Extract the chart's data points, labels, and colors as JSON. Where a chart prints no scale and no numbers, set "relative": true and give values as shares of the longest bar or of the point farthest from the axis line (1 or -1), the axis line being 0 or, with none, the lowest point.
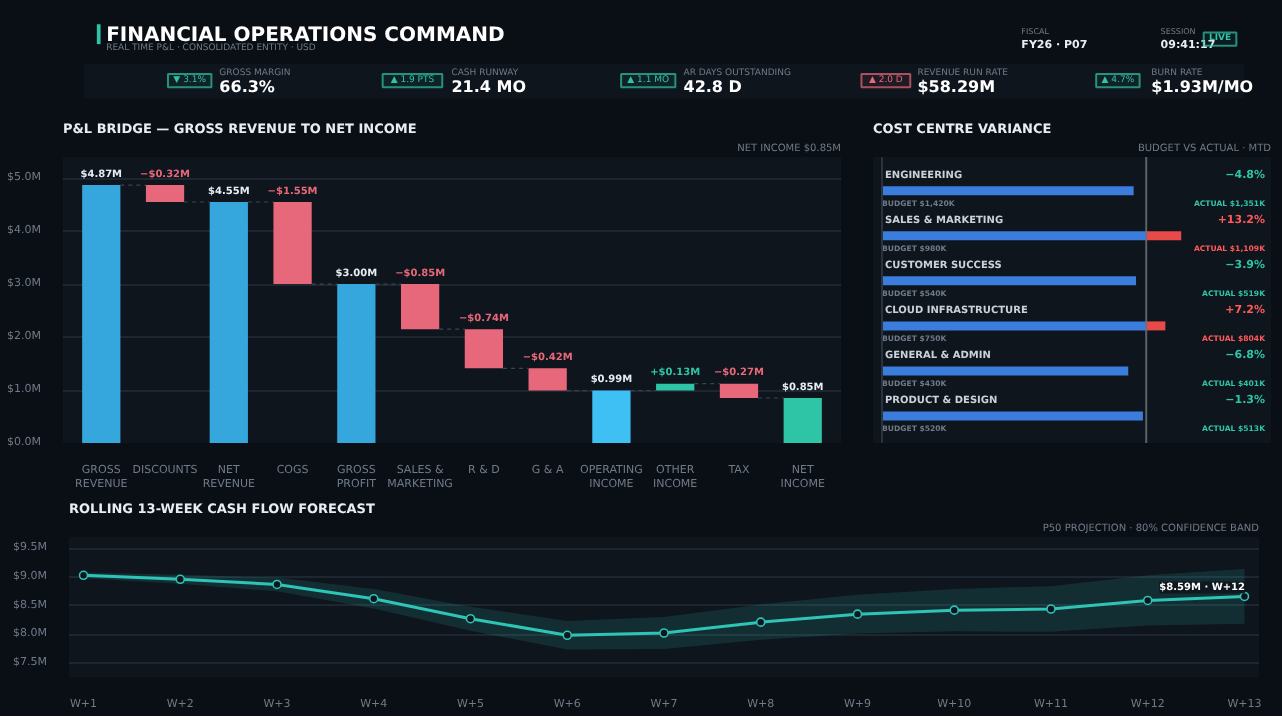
{
  "chart_data": [
    {
      "type": "other",
      "title": "FINANCIAL OPERATIONS COMMAND",
      "subtitle": "REAL TIME P&L · CONSOLIDATED ENTITY · USD",
      "annotations": [
        "FISCAL",
        "FY26 · P07",
        "SESSION",
        "09:41:17",
        "LIVE",
        "▼ 3.1%",
        "GROSS MARGIN",
        "66.3%",
        "▲ 1.9 PTS",
        "CASH RUNWAY",
        "21.4 MO",
        "▲ 1.1 MO",
        "AR DAYS OUTSTANDING",
        "42.8 D",
        "▲ 2.0 D",
        "REVENUE RUN RATE",
        "$58.29M",
        "▲ 4.7%",
        "BURN RATE",
        "$1.93M/MO"
      ]
    },
    {
      "type": "bar",
      "title": "P&L BRIDGE — GROSS REVENUE TO NET INCOME",
      "subtitle": "NET INCOME $0.85M",
      "categories": [
        "GROSS REVENUE",
        "DISCOUNTS",
        "NET REVENUE",
        "COGS",
        "GROSS PROFIT",
        "SALES & MARKETING",
        "R & D",
        "G & A",
        "OPERATING INCOME",
        "OTHER INCOME",
        "TAX",
        "NET INCOME"
      ],
      "values": [
        4.87,
        -0.32,
        4.55,
        -1.55,
        3.0,
        -0.85,
        -0.74,
        -0.42,
        0.99,
        0.13,
        -0.27,
        0.85
      ],
      "base": [
        0,
        4.87,
        0,
        4.55,
        0,
        3.0,
        2.15,
        1.41,
        0,
        0.99,
        1.12,
        0
      ],
      "colors": [
        "#35a7dc",
        "#e8687b",
        "#35a7dc",
        "#e8687b",
        "#35a7dc",
        "#e8687b",
        "#e8687b",
        "#e8687b",
        "#3fc0f5",
        "#2ec4a6",
        "#e8687b",
        "#2ec4a6"
      ],
      "value_labels": [
        "$4.87M",
        "−$0.32M",
        "$4.55M",
        "−$1.55M",
        "$3.00M",
        "−$0.85M",
        "−$0.74M",
        "−$0.42M",
        "$0.99M",
        "+$0.13M",
        "−$0.27M",
        "$0.85M"
      ],
      "ylim": [
        0,
        5.4
      ],
      "yticks": [
        {
          "value": 0,
          "label": "$0.0M"
        },
        {
          "value": 1,
          "label": "$1.0M"
        },
        {
          "value": 2,
          "label": "$2.0M"
        },
        {
          "value": 3,
          "label": "$3.0M"
        },
        {
          "value": 4,
          "label": "$4.0M"
        },
        {
          "value": 5,
          "label": "$5.0M"
        }
      ],
      "grid": "y"
    },
    {
      "type": "bar",
      "orientation": "horizontal",
      "stacked": true,
      "relative": true,
      "title": "COST CENTRE VARIANCE",
      "subtitle": "BUDGET VS ACTUAL · MTD",
      "categories": [
        "ENGINEERING",
        "SALES & MARKETING",
        "CUSTOMER SUCCESS",
        "CLOUD INFRASTRUCTURE",
        "GENERAL & ADMIN",
        "PRODUCT & DESIGN"
      ],
      "series": [
        {
          "color": "#3b7ddd",
          "values": [
            0.841,
            0.883,
            0.849,
            0.883,
            0.823,
            0.872
          ]
        },
        {
          "color": "#e84a4a",
          "values": [
            0,
            0.117,
            0,
            0.064,
            0,
            0
          ]
        }
      ],
      "ref_lines": [
        {
          "axis": "x",
          "value": 0.883,
          "color": "#6b7480"
        }
      ],
      "annotations": [
        "−4.8%",
        "BUDGET $1,420K",
        "ACTUAL $1,351K",
        "+13.2%",
        "BUDGET $980K",
        "ACTUAL $1,109K",
        "−3.9%",
        "BUDGET $540K",
        "ACTUAL $519K",
        "+7.2%",
        "BUDGET $750K",
        "ACTUAL $804K",
        "−6.8%",
        "BUDGET $430K",
        "ACTUAL $401K",
        "−1.3%",
        "BUDGET $520K",
        "ACTUAL $513K"
      ]
    },
    {
      "type": "line",
      "title": "ROLLING 13-WEEK CASH FLOW FORECAST",
      "subtitle": "P50 PROJECTION · 80% CONFIDENCE BAND",
      "categories": [
        "W+1",
        "W+2",
        "W+3",
        "W+4",
        "W+5",
        "W+6",
        "W+7",
        "W+8",
        "W+9",
        "W+10",
        "W+11",
        "W+12",
        "W+13"
      ],
      "series": [
        {
          "color": "#2ec4b6",
          "values": [
            9.03,
            8.96,
            8.87,
            8.62,
            8.27,
            7.98,
            8.02,
            8.21,
            8.35,
            8.42,
            8.44,
            8.59,
            8.66
          ],
          "lower": [
            8.98,
            8.88,
            8.75,
            8.45,
            8.06,
            7.73,
            7.74,
            7.9,
            8.01,
            8.05,
            8.04,
            8.15,
            8.18
          ],
          "upper": [
            9.08,
            9.04,
            8.99,
            8.79,
            8.48,
            8.23,
            8.3,
            8.52,
            8.69,
            8.79,
            8.84,
            9.03,
            9.14
          ]
        }
      ],
      "ylim": [
        7.25,
        9.7
      ],
      "yticks": [
        {
          "value": 7.5,
          "label": "$7.5M"
        },
        {
          "value": 8.0,
          "label": "$8.0M"
        },
        {
          "value": 8.5,
          "label": "$8.5M"
        },
        {
          "value": 9.0,
          "label": "$9.0M"
        },
        {
          "value": 9.5,
          "label": "$9.5M"
        }
      ],
      "marker": "circle",
      "grid": "y",
      "annotations": [
        {
          "text": "$8.59M · W+12",
          "x": "W+12",
          "y": 8.59
        }
      ]
    }
  ]
}
